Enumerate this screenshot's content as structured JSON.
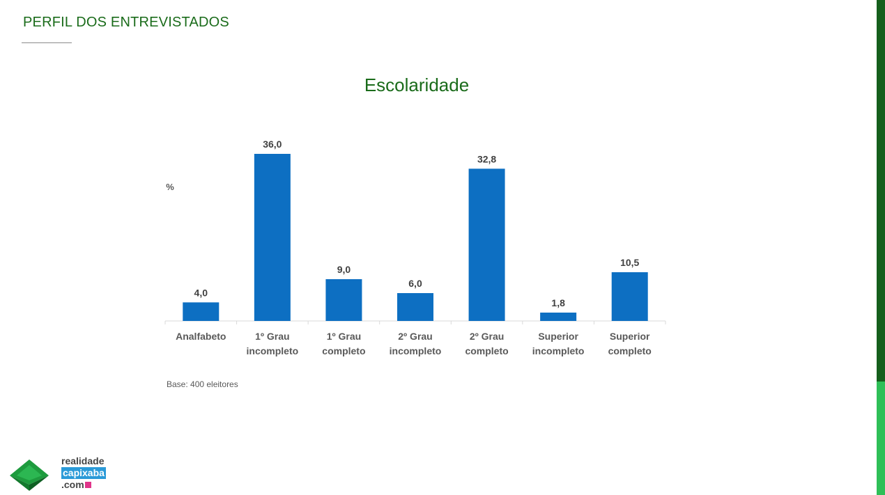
{
  "header": {
    "title": "PERFIL DOS ENTREVISTADOS"
  },
  "logo": {
    "line1": "realidade",
    "line2": "capixaba",
    "line3": ".com"
  },
  "colors": {
    "bar": "#0d6fc2",
    "title_green": "#1a6b1a",
    "side_dark": "#155f1c",
    "side_light": "#2ebf57"
  },
  "chart_data": {
    "type": "bar",
    "title": "Escolaridade",
    "unit_label": "%",
    "categories": [
      [
        "Analfabeto"
      ],
      [
        "1º Grau",
        "incompleto"
      ],
      [
        "1º Grau",
        "completo"
      ],
      [
        "2º Grau",
        "incompleto"
      ],
      [
        "2º Grau",
        "completo"
      ],
      [
        "Superior",
        "incompleto"
      ],
      [
        "Superior",
        "completo"
      ]
    ],
    "values": [
      4.0,
      36.0,
      9.0,
      6.0,
      32.8,
      1.8,
      10.5
    ],
    "value_labels": [
      "4,0",
      "36,0",
      "9,0",
      "6,0",
      "32,8",
      "1,8",
      "10,5"
    ],
    "ylim": [
      0,
      36
    ],
    "grid": false,
    "note": "Base: 400 eleitores"
  }
}
